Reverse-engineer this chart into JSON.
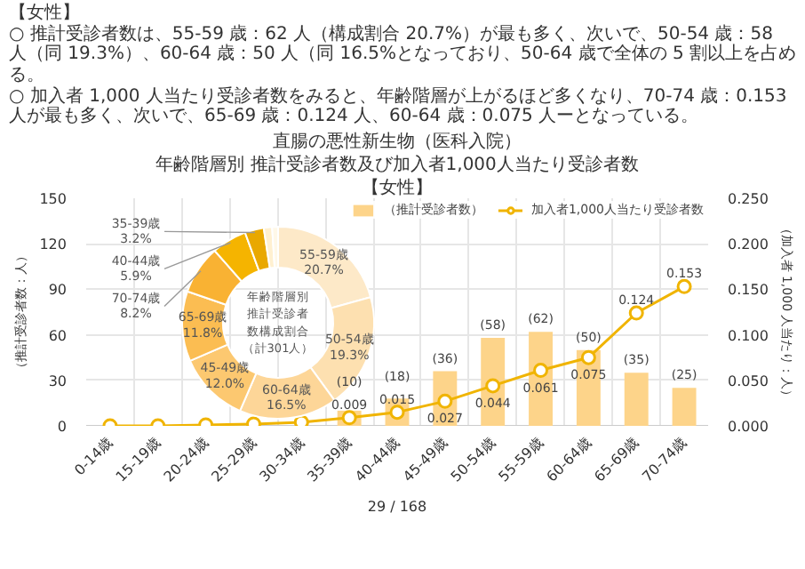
{
  "chart_data": [
    {
      "type": "bar",
      "title": "直腸の悪性新生物（医科入院）",
      "subtitle": "年齢階層別 推計受診者数及び加入者1,000人当たり受診者数",
      "ylabel": "（推計受診者数：人）",
      "y2label": "（加入者 1,000 人当たり：人）",
      "annotations": [
        "【女性】",
        "○ 推計受診者数は、55-59 歳：62 人（構成割合 20.7%）が最も多く、次いで、50-54 歳：58 人（同 19.3%）、60-64 歳：50 人（同 16.5%となっており、50-64 歳で全体の 5 割以上を占める。",
        "○ 加入者 1,000 人当たり受診者数をみると、年齢階層が上がるほど多くなり、70-74 歳：0.153 人が最も多く、次いで、65-69 歳：0.124 人、60-64 歳：0.075 人ーとなっている。",
        "【女性】",
        "29 / 168"
      ],
      "categories": [
        "0-14歳",
        "15-19歳",
        "20-24歳",
        "25-29歳",
        "30-34歳",
        "35-39歳",
        "40-44歳",
        "45-49歳",
        "50-54歳",
        "55-59歳",
        "60-64歳",
        "65-69歳",
        "70-74歳"
      ],
      "series": [
        {
          "name": "（推計受診者数）",
          "color": "#fdd48a",
          "values": [
            0,
            0,
            0,
            0,
            0,
            10,
            18,
            36,
            58,
            62,
            50,
            35,
            25
          ],
          "value_labels": [
            null,
            null,
            null,
            null,
            null,
            "(10)",
            "(18)",
            "(36)",
            "(58)",
            "(62)",
            "(50)",
            "(35)",
            "(25)"
          ]
        },
        {
          "name": "加入者1,000人当たり受診者数",
          "type": "line",
          "axis": "y2",
          "color": "#f0b400",
          "values": [
            0,
            0,
            0.001,
            0.002,
            0.004,
            0.009,
            0.015,
            0.027,
            0.044,
            0.061,
            0.075,
            0.124,
            0.153
          ],
          "value_labels": [
            null,
            null,
            null,
            null,
            null,
            "0.009",
            "0.015",
            "0.027",
            "0.044",
            "0.061",
            "0.075",
            "0.124",
            "0.153"
          ]
        }
      ],
      "ylim": [
        0,
        150
      ],
      "yticks": [
        0,
        30,
        60,
        90,
        120,
        150
      ],
      "y2lim": [
        0,
        0.25
      ],
      "y2ticks": [
        {
          "value": 0,
          "label": "0.000"
        },
        {
          "value": 0.05,
          "label": "0.050"
        },
        {
          "value": 0.1,
          "label": "0.100"
        },
        {
          "value": 0.15,
          "label": "0.150"
        },
        {
          "value": 0.2,
          "label": "0.200"
        },
        {
          "value": 0.25,
          "label": "0.250"
        }
      ],
      "grid": true,
      "legend": "top right",
      "marker": "circle"
    },
    {
      "type": "donut",
      "title": "年齢階層別推計受診者数構成割合（計301人）",
      "categories": [
        "55-59歳",
        "50-54歳",
        "60-64歳",
        "45-49歳",
        "65-69歳",
        "70-74歳",
        "40-44歳",
        "35-39歳",
        null,
        null
      ],
      "values": [
        20.7,
        19.3,
        16.5,
        12.0,
        11.8,
        8.2,
        5.9,
        3.2,
        1.4,
        1.0
      ],
      "value_labels": [
        "20.7%",
        "19.3%",
        "16.5%",
        "12.0%",
        "11.8%",
        "8.2%",
        "5.9%",
        "3.2%",
        null,
        null
      ],
      "colors": [
        "#fde9c8",
        "#fde0b0",
        "#fdd698",
        "#fcc870",
        "#fbbd52",
        "#f9b233",
        "#f5b400",
        "#e9a800",
        "#fff0d0",
        "#fff8e8"
      ]
    }
  ]
}
